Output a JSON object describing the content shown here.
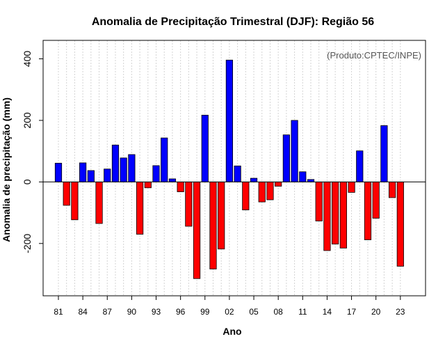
{
  "chart_data": {
    "type": "bar",
    "title": "Anomalia de Precipitação Trimestral (DJF): Região 56",
    "xlabel": "Ano",
    "ylabel": "Anomalia de precipitação (mm)",
    "annotation": "(Produto:CPTEC/INPE)",
    "ylim": [
      -370,
      460
    ],
    "yticks": [
      -200,
      0,
      200,
      400
    ],
    "xtick_labels": [
      "81",
      "84",
      "87",
      "90",
      "93",
      "96",
      "99",
      "02",
      "05",
      "08",
      "11",
      "14",
      "17",
      "20",
      "23"
    ],
    "xtick_years": [
      1981,
      1984,
      1987,
      1990,
      1993,
      1996,
      1999,
      2002,
      2005,
      2008,
      2011,
      2014,
      2017,
      2020,
      2023
    ],
    "grid": true,
    "colors": {
      "positive": "#0000ff",
      "negative": "#ff0000",
      "grid": "#d3d3d3",
      "zero_line": "#000000"
    },
    "years": [
      1981,
      1982,
      1983,
      1984,
      1985,
      1986,
      1987,
      1988,
      1989,
      1990,
      1991,
      1992,
      1993,
      1994,
      1995,
      1996,
      1997,
      1998,
      1999,
      2000,
      2001,
      2002,
      2003,
      2004,
      2005,
      2006,
      2007,
      2008,
      2009,
      2010,
      2011,
      2012,
      2013,
      2014,
      2015,
      2016,
      2017,
      2018,
      2019,
      2020,
      2021,
      2022,
      2023
    ],
    "values": [
      61,
      -76,
      -123,
      62,
      37,
      -135,
      42,
      120,
      78,
      89,
      -170,
      -19,
      53,
      143,
      10,
      -32,
      -144,
      -314,
      217,
      -283,
      -218,
      396,
      52,
      -91,
      12,
      -65,
      -58,
      -14,
      153,
      200,
      33,
      8,
      -127,
      -223,
      -202,
      -215,
      -34,
      101,
      -188,
      -118,
      183,
      -51,
      -274
    ]
  }
}
